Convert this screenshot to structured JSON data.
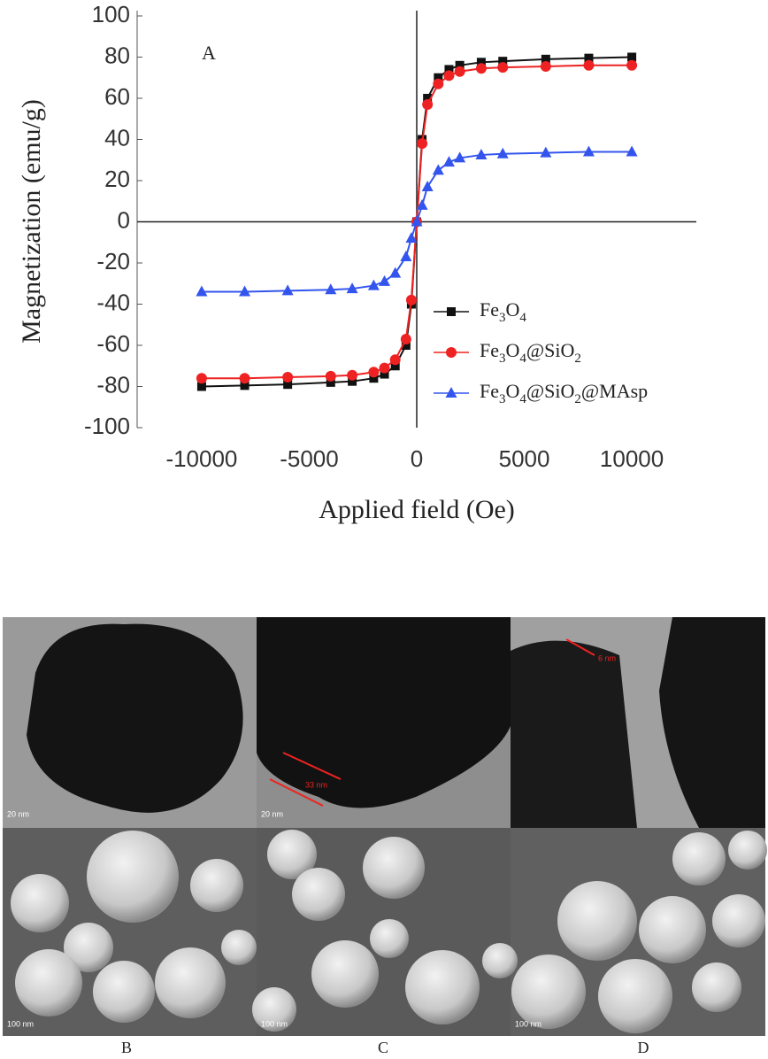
{
  "chart_data": {
    "type": "line",
    "panel_label": "A",
    "xlabel": "Applied field (Oe)",
    "ylabel": "Magnetization (emu/g)",
    "x": [
      -10000,
      -8000,
      -6000,
      -4000,
      -3000,
      -2000,
      -1500,
      -1000,
      -500,
      -250,
      0,
      250,
      500,
      1000,
      1500,
      2000,
      3000,
      4000,
      6000,
      8000,
      10000
    ],
    "series": [
      {
        "name": "Fe3O4",
        "color": "#111111",
        "marker": "square",
        "values": [
          -80,
          -79.5,
          -79,
          -78,
          -77.5,
          -76,
          -74,
          -70,
          -60,
          -40,
          0,
          40,
          60,
          70,
          74,
          76,
          77.5,
          78,
          79,
          79.5,
          80
        ]
      },
      {
        "name": "Fe3O4@SiO2",
        "color": "#ee2222",
        "marker": "circle",
        "values": [
          -76,
          -76,
          -75.5,
          -75,
          -74.5,
          -73,
          -71,
          -67,
          -57,
          -38,
          0,
          38,
          57,
          67,
          71,
          73,
          74.5,
          75,
          75.5,
          76,
          76
        ]
      },
      {
        "name": "Fe3O4@SiO2@MAsp",
        "color": "#3355ee",
        "marker": "triangle",
        "values": [
          -34,
          -34,
          -33.5,
          -33,
          -32.5,
          -31,
          -29,
          -25,
          -17,
          -8,
          0,
          8,
          17,
          25,
          29,
          31,
          32.5,
          33,
          33.5,
          34,
          34
        ]
      }
    ],
    "xlim": [
      -13000,
      13000
    ],
    "xticks": [
      -10000,
      -5000,
      0,
      5000,
      10000
    ],
    "ylim": [
      -100,
      100
    ],
    "yticks": [
      -100,
      -80,
      -60,
      -40,
      -20,
      0,
      20,
      40,
      60,
      80,
      100
    ],
    "zero_lines": true,
    "legend": "lower right"
  },
  "images": {
    "labels": [
      "B",
      "C",
      "D"
    ],
    "tem_scale": "20 nm",
    "sem_scale": "100 nm",
    "shell_c": "33 nm",
    "shell_d": "6 nm"
  }
}
